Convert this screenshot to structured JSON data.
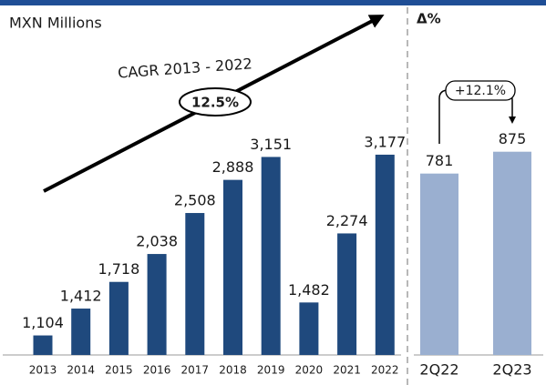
{
  "chart_data": [
    {
      "type": "bar",
      "title": "MXN Millions",
      "annotation": "CAGR 2013 - 2022",
      "annotation_value": "12.5%",
      "categories": [
        "2013",
        "2014",
        "2015",
        "2016",
        "2017",
        "2018",
        "2019",
        "2020",
        "2021",
        "2022"
      ],
      "values": [
        1104,
        1412,
        1718,
        2038,
        2508,
        2888,
        3151,
        1482,
        2274,
        3177
      ],
      "value_labels": [
        "1,104",
        "1,412",
        "1,718",
        "2,038",
        "2,508",
        "2,888",
        "3,151",
        "1,482",
        "2,274",
        "3,177"
      ],
      "color": "#1f497d",
      "ylim": [
        880,
        3500
      ]
    },
    {
      "type": "bar",
      "title": "Δ%",
      "annotation": "+12.1%",
      "categories": [
        "2Q22",
        "2Q23"
      ],
      "values": [
        781,
        875
      ],
      "color": "#9aafd0",
      "ylim": [
        0,
        960
      ]
    }
  ]
}
